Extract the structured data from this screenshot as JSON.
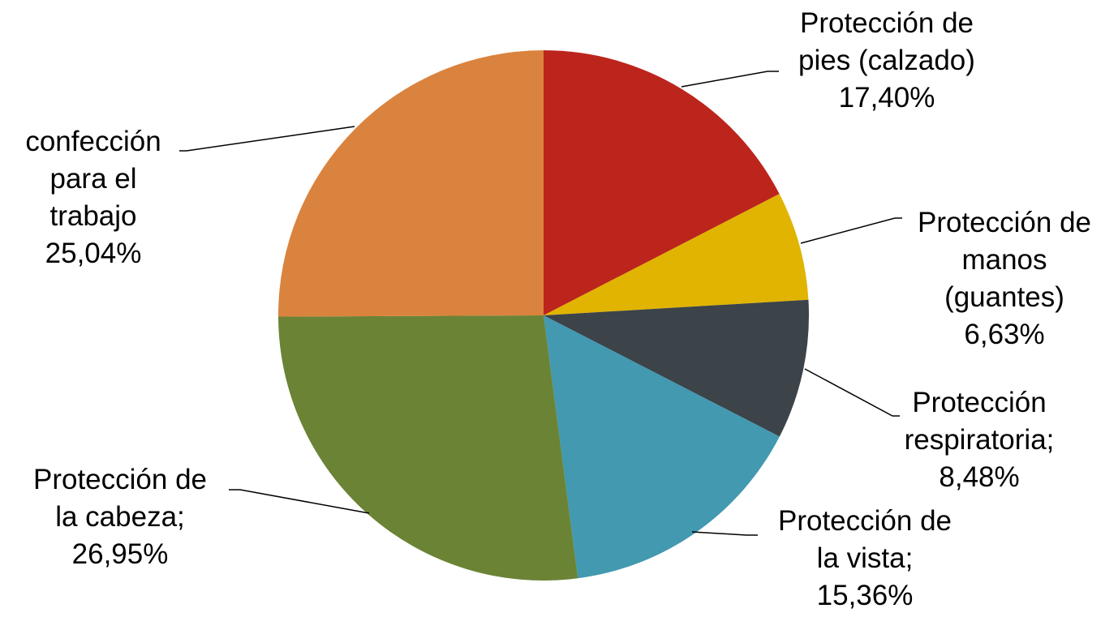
{
  "chart_data": {
    "type": "pie",
    "title": "",
    "start_angle_deg": 0,
    "direction": "clockwise",
    "slices": [
      {
        "label_lines": [
          "Protección de",
          "pies (calzado)",
          "17,40%"
        ],
        "value": 17.4,
        "color": "#BC251C"
      },
      {
        "label_lines": [
          "Protección de",
          "manos",
          "(guantes)",
          "6,63%"
        ],
        "value": 6.63,
        "color": "#E0B400"
      },
      {
        "label_lines": [
          "Protección",
          "respiratoria;",
          "8,48%"
        ],
        "value": 8.48,
        "color": "#3C4349"
      },
      {
        "label_lines": [
          "Protección de",
          "la vista;",
          "15,36%"
        ],
        "value": 15.36,
        "color": "#4299B0"
      },
      {
        "label_lines": [
          "Protección de",
          "la cabeza;",
          "26,95%"
        ],
        "value": 26.95,
        "color": "#6B8335"
      },
      {
        "label_lines": [
          "confección",
          "para el",
          "trabajo",
          "25,04%"
        ],
        "value": 25.04,
        "color": "#DA833E"
      }
    ]
  }
}
